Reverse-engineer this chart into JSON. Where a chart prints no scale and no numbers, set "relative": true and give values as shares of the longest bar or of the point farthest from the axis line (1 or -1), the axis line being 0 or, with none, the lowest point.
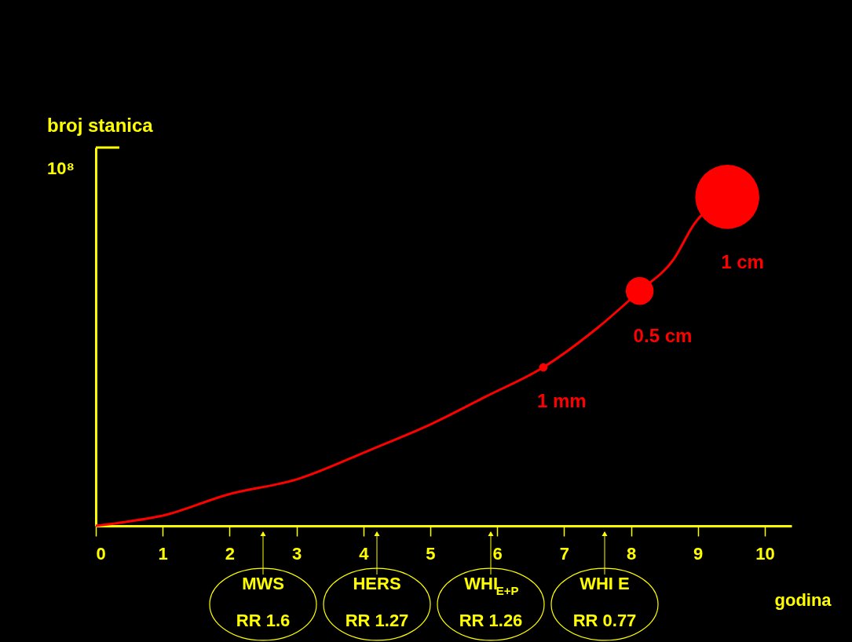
{
  "chart_data": {
    "type": "line",
    "relative": true,
    "ylabel": "broj stanica",
    "xlabel": "godina",
    "xlim": [
      0,
      10.4
    ],
    "xticks": [
      0,
      1,
      2,
      3,
      4,
      5,
      6,
      7,
      8,
      9,
      10
    ],
    "grid": false,
    "series": [
      {
        "color": "#ff0000",
        "x": [
          0,
          0.45,
          1.0,
          1.97,
          3.03,
          4.08,
          5.02,
          5.84,
          6.69,
          7.47,
          8.13,
          8.64,
          8.95,
          9.44
        ],
        "values": [
          0,
          0.012,
          0.031,
          0.095,
          0.143,
          0.229,
          0.31,
          0.394,
          0.482,
          0.597,
          0.714,
          0.811,
          0.919,
          1.0
        ]
      },
      {
        "type": "bubble",
        "color": "#ff0000",
        "x": [
          6.69,
          8.13,
          9.44
        ],
        "values": [
          0.482,
          0.714,
          1.0
        ],
        "sizes": [
          0.017,
          0.19,
          1
        ]
      }
    ],
    "annotations": [
      "10⁸",
      {
        "text": "1 mm",
        "x": 6.69,
        "y": 0.482
      },
      {
        "text": "0.5 cm",
        "x": 8.13,
        "y": 0.714
      },
      {
        "text": "1 cm",
        "x": 9.44,
        "y": 1.0
      },
      "MWS\nRR 1.6",
      "HERS\nRR 1.27",
      "WHI$_{E+P}$\nRR 1.26",
      "WHI E\nRR 0.77"
    ]
  }
}
